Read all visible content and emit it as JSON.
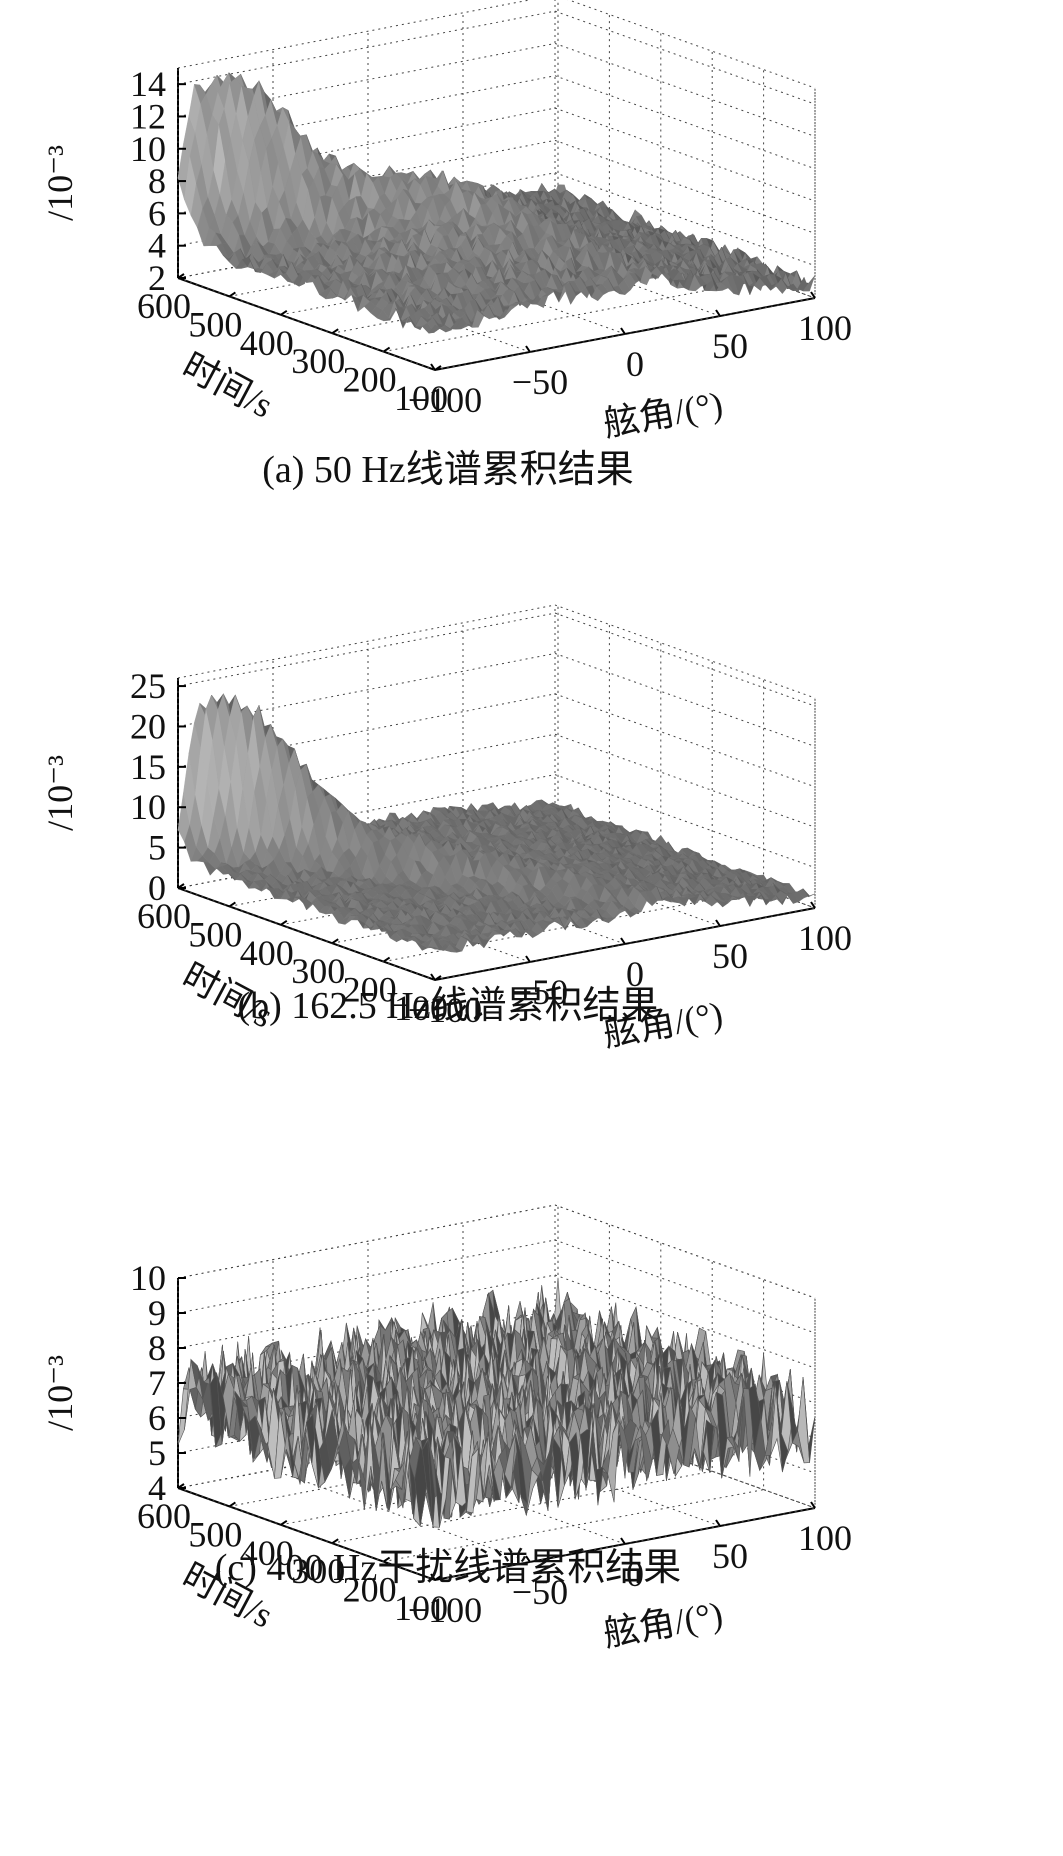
{
  "chart_data": [
    {
      "type": "surface",
      "caption": "(a) 50 Hz线谱累积结果",
      "z_unit_label": "/10⁻³",
      "z_ticks": [
        "2",
        "4",
        "6",
        "8",
        "10",
        "12",
        "14"
      ],
      "zlim": [
        2,
        15
      ],
      "xlabel": "舷角/(°)",
      "x_ticks": [
        "−100",
        "−50",
        "0",
        "50",
        "100"
      ],
      "xlim": [
        -100,
        100
      ],
      "ylabel": "时间/s",
      "y_ticks": [
        "100",
        "200",
        "300",
        "400",
        "500",
        "600"
      ],
      "ylim": [
        100,
        600
      ],
      "grid": true,
      "surface_model": {
        "base": 4.2,
        "noise": 0.6,
        "ridge": {
          "start_angle": -100,
          "end_angle": 20,
          "peak": 15,
          "width": 14
        },
        "hump": {
          "angle": -30,
          "time": 320,
          "peak": 7.5,
          "width": 45
        },
        "drop_angle": 30
      }
    },
    {
      "type": "surface",
      "caption": "(b) 162.5 Hz线谱累积结果",
      "z_unit_label": "/10⁻³",
      "z_ticks": [
        "0",
        "5",
        "10",
        "15",
        "20",
        "25"
      ],
      "zlim": [
        0,
        26
      ],
      "xlabel": "舷角/(°)",
      "x_ticks": [
        "−100",
        "−50",
        "0",
        "50",
        "100"
      ],
      "xlim": [
        -100,
        100
      ],
      "ylabel": "时间/s",
      "y_ticks": [
        "100",
        "200",
        "300",
        "400",
        "500",
        "600"
      ],
      "ylim": [
        100,
        600
      ],
      "grid": true,
      "surface_model": {
        "base": 3.5,
        "noise": 0.8,
        "ridge": {
          "start_angle": -100,
          "end_angle": 20,
          "peak": 25,
          "width": 10
        },
        "hump": {
          "angle": -10,
          "time": 300,
          "peak": 4,
          "width": 60
        },
        "drop_angle": 30
      }
    },
    {
      "type": "surface",
      "caption": "(c) 400 Hz干扰线谱累积结果",
      "z_unit_label": "/10⁻³",
      "z_ticks": [
        "4",
        "5",
        "6",
        "7",
        "8",
        "9",
        "10"
      ],
      "zlim": [
        4,
        10
      ],
      "xlabel": "舷角/(°)",
      "x_ticks": [
        "−100",
        "−50",
        "0",
        "50",
        "100"
      ],
      "xlim": [
        -100,
        100
      ],
      "ylabel": "时间/s",
      "y_ticks": [
        "100",
        "200",
        "300",
        "400",
        "500",
        "600"
      ],
      "ylim": [
        100,
        600
      ],
      "grid": true,
      "surface_model": {
        "base": 6.6,
        "noise": 1.4,
        "ridge": null,
        "hump": null,
        "drop_angle": null
      }
    }
  ]
}
